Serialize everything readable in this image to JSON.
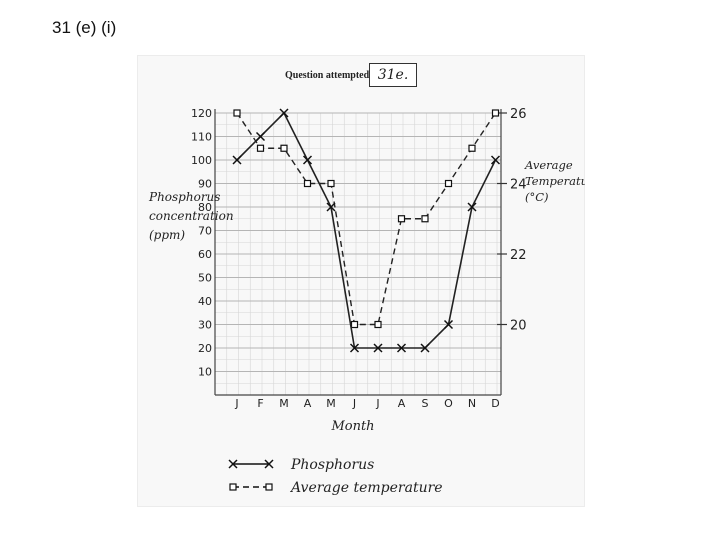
{
  "slide_title": "31 (e) (i)",
  "header": {
    "label": "Question attempted",
    "answer": "31e."
  },
  "chart_data": {
    "type": "line",
    "categories": [
      "J",
      "F",
      "M",
      "A",
      "M",
      "J",
      "J",
      "A",
      "S",
      "O",
      "N",
      "D"
    ],
    "xlabel": "Month",
    "y_left": {
      "label_lines": [
        "Phosphorus",
        "concentration",
        "(ppm)"
      ],
      "ticks": [
        10,
        20,
        30,
        40,
        50,
        60,
        70,
        80,
        90,
        100,
        110,
        120
      ],
      "range": [
        0,
        120
      ]
    },
    "y_right": {
      "label_lines": [
        "Average",
        "Temperature",
        "(°C)"
      ],
      "ticks": [
        20,
        22,
        24,
        26
      ],
      "range": [
        18,
        26
      ]
    },
    "series": [
      {
        "name": "Phosphorus",
        "axis": "left",
        "marker": "x",
        "style": "solid",
        "values": [
          100,
          110,
          120,
          100,
          80,
          20,
          20,
          20,
          20,
          30,
          80,
          100
        ]
      },
      {
        "name": "Average temperature",
        "axis": "right",
        "marker": "square",
        "style": "dashed",
        "values": [
          26,
          25,
          25,
          24,
          24,
          20,
          20,
          23,
          23,
          24,
          25,
          26
        ]
      }
    ],
    "legend": {
      "placement": "bottom"
    },
    "grid": true
  }
}
